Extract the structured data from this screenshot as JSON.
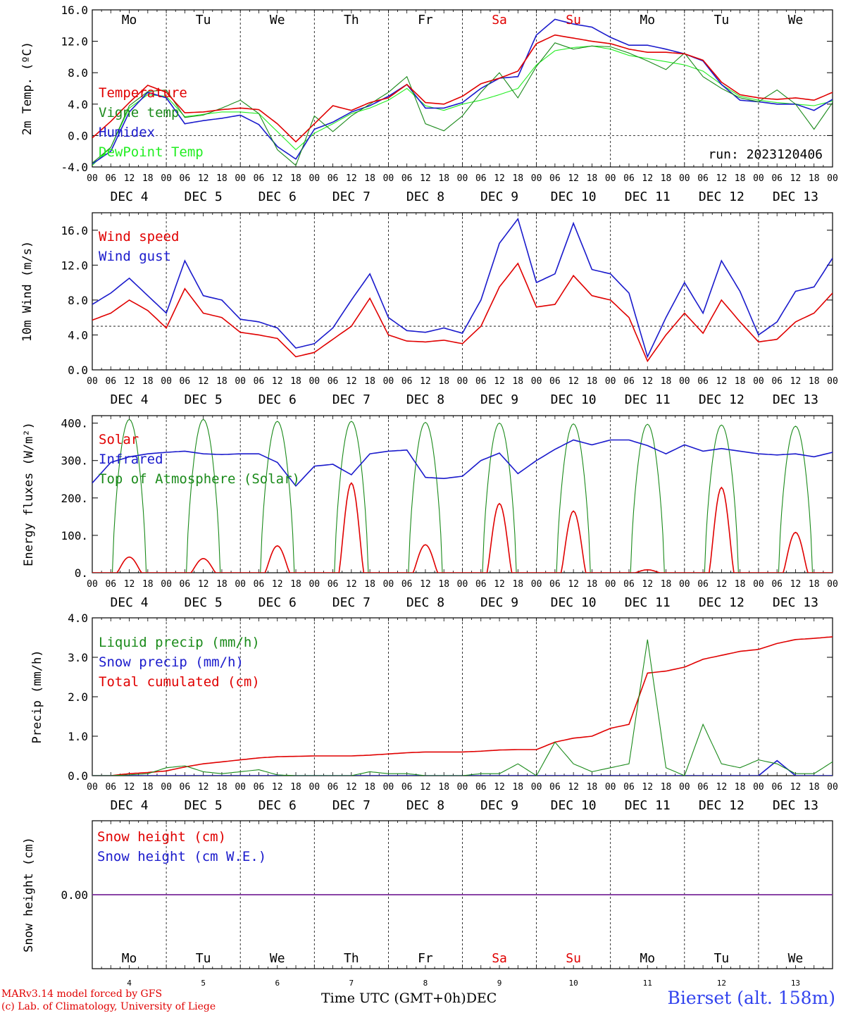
{
  "colors": {
    "red": "#e00000",
    "green": "#1a8a1a",
    "blue": "#1a1acc",
    "lightgreen": "#22ee22",
    "purple": "#7a2a9a"
  },
  "weekdays": [
    {
      "label": "Mo",
      "weekend": false
    },
    {
      "label": "Tu",
      "weekend": false
    },
    {
      "label": "We",
      "weekend": false
    },
    {
      "label": "Th",
      "weekend": false
    },
    {
      "label": "Fr",
      "weekend": false
    },
    {
      "label": "Sa",
      "weekend": true
    },
    {
      "label": "Su",
      "weekend": true
    },
    {
      "label": "Mo",
      "weekend": false
    },
    {
      "label": "Tu",
      "weekend": false
    },
    {
      "label": "We",
      "weekend": false
    }
  ],
  "hour_ticks": [
    "00",
    "06",
    "12",
    "18"
  ],
  "date_labels": [
    "DEC  4",
    "DEC  5",
    "DEC  6",
    "DEC  7",
    "DEC  8",
    "DEC  9",
    "DEC 10",
    "DEC 11",
    "DEC 12",
    "DEC 13"
  ],
  "bottom_day_numbers": [
    "4",
    "5",
    "6",
    "7",
    "8",
    "9",
    "10",
    "11",
    "12",
    "13"
  ],
  "footer": {
    "credit_line1": "MARv3.14 model forced by GFS",
    "credit_line2": "(c) Lab. of Climatology, University of Liege",
    "axis_label": "Time UTC (GMT+0h)",
    "month": "DEC",
    "station": "Bierset (alt. 158m)"
  },
  "chart_data": [
    {
      "type": "line",
      "ylabel": "2m Temp. (ºC)",
      "ylim": [
        -4,
        16
      ],
      "yticks": [
        "-4.0",
        "0.0",
        "4.0",
        "8.0",
        "12.0",
        "16.0"
      ],
      "ytick_values": [
        -4,
        0,
        4,
        8,
        12,
        16
      ],
      "reference_line": 0,
      "annotation": "run: 2023120406",
      "x_unit": "hours since 4 Dec 00 UTC",
      "series": [
        {
          "name": "Temperature",
          "color": "red",
          "x": [
            0,
            6,
            12,
            18,
            24,
            30,
            36,
            42,
            48,
            54,
            60,
            66,
            72,
            78,
            84,
            90,
            96,
            102,
            108,
            114,
            120,
            126,
            132,
            138,
            144,
            150,
            156,
            162,
            168,
            174,
            180,
            186,
            192,
            198,
            204,
            210,
            216,
            222,
            228,
            234,
            240
          ],
          "y": [
            -0.3,
            1.8,
            4.2,
            6.4,
            5.5,
            2.9,
            3.0,
            3.3,
            3.5,
            3.3,
            1.5,
            -0.8,
            1.5,
            3.8,
            3.2,
            4.2,
            4.8,
            6.5,
            4.2,
            4.0,
            5.0,
            6.6,
            7.3,
            8.2,
            11.7,
            12.8,
            12.4,
            12.0,
            11.7,
            11.0,
            10.6,
            10.6,
            10.4,
            9.6,
            6.8,
            5.2,
            4.8,
            4.6,
            4.8,
            4.5,
            5.5
          ]
        },
        {
          "name": "Vigne temp",
          "color": "green",
          "x": [
            0,
            6,
            12,
            18,
            24,
            30,
            36,
            42,
            48,
            54,
            60,
            66,
            72,
            78,
            84,
            90,
            96,
            102,
            108,
            114,
            120,
            126,
            132,
            138,
            144,
            150,
            156,
            162,
            168,
            174,
            180,
            186,
            192,
            198,
            204,
            210,
            216,
            222,
            228,
            234,
            240
          ],
          "y": [
            -3.5,
            -1.5,
            3.8,
            5.6,
            5.8,
            2.3,
            2.6,
            3.5,
            4.5,
            2.8,
            -1.8,
            -3.8,
            2.5,
            0.5,
            2.5,
            4.0,
            5.5,
            7.5,
            1.5,
            0.6,
            2.5,
            5.5,
            8.0,
            4.8,
            8.8,
            11.8,
            11.0,
            11.4,
            11.3,
            10.5,
            9.5,
            8.4,
            10.5,
            7.5,
            6.0,
            4.8,
            4.3,
            5.8,
            4.0,
            0.8,
            4.2
          ]
        },
        {
          "name": "Humidex",
          "color": "blue",
          "x": [
            0,
            6,
            12,
            18,
            24,
            30,
            36,
            42,
            48,
            54,
            60,
            66,
            72,
            78,
            84,
            90,
            96,
            102,
            108,
            114,
            120,
            126,
            132,
            138,
            144,
            150,
            156,
            162,
            168,
            174,
            180,
            186,
            192,
            198,
            204,
            210,
            216,
            222,
            228,
            234,
            240
          ],
          "y": [
            -3.6,
            -2.0,
            3.0,
            5.5,
            4.8,
            1.5,
            1.9,
            2.2,
            2.6,
            1.4,
            -1.4,
            -3.0,
            0.8,
            1.7,
            3.0,
            3.8,
            5.0,
            6.5,
            3.5,
            3.5,
            4.2,
            6.0,
            7.3,
            7.5,
            12.8,
            14.8,
            14.2,
            13.8,
            12.5,
            11.5,
            11.5,
            11.0,
            10.4,
            9.5,
            6.5,
            4.5,
            4.3,
            4.0,
            4.0,
            3.2,
            4.6
          ]
        },
        {
          "name": "DewPoint Temp",
          "color": "lightgreen",
          "x": [
            0,
            6,
            12,
            18,
            24,
            30,
            36,
            42,
            48,
            54,
            60,
            66,
            72,
            78,
            84,
            90,
            96,
            102,
            108,
            114,
            120,
            126,
            132,
            138,
            144,
            150,
            156,
            162,
            168,
            174,
            180,
            186,
            192,
            198,
            204,
            210,
            216,
            222,
            228,
            234,
            240
          ],
          "y": [
            -3.8,
            -1.5,
            3.5,
            5.2,
            5.0,
            2.4,
            2.7,
            3.0,
            3.0,
            2.8,
            0.5,
            -1.8,
            0.3,
            1.5,
            2.8,
            3.5,
            4.5,
            6.0,
            3.8,
            3.2,
            4.0,
            4.5,
            5.2,
            6.0,
            9.0,
            10.8,
            11.2,
            11.4,
            11.0,
            10.2,
            9.8,
            9.4,
            9.0,
            8.2,
            6.5,
            5.0,
            4.5,
            4.2,
            4.0,
            3.8,
            4.4
          ]
        }
      ]
    },
    {
      "type": "line",
      "ylabel": "10m Wind (m/s)",
      "ylim": [
        0,
        18
      ],
      "yticks": [
        "0.0",
        "4.0",
        "8.0",
        "12.0",
        "16.0"
      ],
      "ytick_values": [
        0,
        4,
        8,
        12,
        16
      ],
      "reference_line": 5,
      "x_unit": "hours since 4 Dec 00 UTC",
      "series": [
        {
          "name": "Wind speed",
          "color": "red",
          "x": [
            0,
            6,
            12,
            18,
            24,
            30,
            36,
            42,
            48,
            54,
            60,
            66,
            72,
            78,
            84,
            90,
            96,
            102,
            108,
            114,
            120,
            126,
            132,
            138,
            144,
            150,
            156,
            162,
            168,
            174,
            180,
            186,
            192,
            198,
            204,
            210,
            216,
            222,
            228,
            234,
            240
          ],
          "y": [
            5.7,
            6.5,
            8.0,
            6.8,
            4.8,
            9.3,
            6.5,
            6.0,
            4.3,
            4.0,
            3.6,
            1.5,
            2.0,
            3.5,
            5.0,
            8.2,
            4.0,
            3.3,
            3.2,
            3.4,
            3.0,
            5.0,
            9.5,
            12.2,
            7.2,
            7.5,
            10.8,
            8.5,
            8.0,
            6.0,
            1.0,
            4.0,
            6.5,
            4.2,
            8.0,
            5.5,
            3.2,
            3.5,
            5.5,
            6.5,
            8.8
          ]
        },
        {
          "name": "Wind gust",
          "color": "blue",
          "x": [
            0,
            6,
            12,
            18,
            24,
            30,
            36,
            42,
            48,
            54,
            60,
            66,
            72,
            78,
            84,
            90,
            96,
            102,
            108,
            114,
            120,
            126,
            132,
            138,
            144,
            150,
            156,
            162,
            168,
            174,
            180,
            186,
            192,
            198,
            204,
            210,
            216,
            222,
            228,
            234,
            240
          ],
          "y": [
            7.5,
            8.8,
            10.5,
            8.5,
            6.5,
            12.5,
            8.5,
            8.0,
            5.8,
            5.5,
            4.8,
            2.5,
            3.0,
            4.8,
            8.0,
            11.0,
            6.0,
            4.5,
            4.3,
            4.8,
            4.2,
            8.0,
            14.5,
            17.3,
            10.0,
            11.0,
            16.8,
            11.5,
            11.0,
            8.8,
            1.5,
            6.0,
            10.0,
            6.5,
            12.5,
            9.0,
            4.0,
            5.5,
            9.0,
            9.5,
            12.8
          ]
        }
      ]
    },
    {
      "type": "line",
      "ylabel": "Energy fluxes (W/m²)",
      "ylim": [
        0,
        420
      ],
      "yticks": [
        "0.",
        "100.",
        "200.",
        "300.",
        "400."
      ],
      "ytick_values": [
        0,
        100,
        200,
        300,
        400
      ],
      "x_unit": "hours since 4 Dec 00 UTC",
      "series": [
        {
          "name": "Solar",
          "color": "red",
          "daily_peak": [
            42,
            38,
            72,
            240,
            75,
            185,
            165,
            8,
            228,
            108
          ]
        },
        {
          "name": "Infrared",
          "color": "blue",
          "x": [
            0,
            6,
            12,
            18,
            24,
            30,
            36,
            42,
            48,
            54,
            60,
            66,
            72,
            78,
            84,
            90,
            96,
            102,
            108,
            114,
            120,
            126,
            132,
            138,
            144,
            150,
            156,
            162,
            168,
            174,
            180,
            186,
            192,
            198,
            204,
            210,
            216,
            222,
            228,
            234,
            240
          ],
          "y": [
            240,
            295,
            310,
            318,
            322,
            325,
            318,
            316,
            318,
            318,
            295,
            232,
            285,
            290,
            262,
            318,
            325,
            328,
            255,
            252,
            258,
            300,
            320,
            265,
            300,
            330,
            355,
            342,
            355,
            355,
            340,
            318,
            342,
            325,
            332,
            325,
            318,
            315,
            318,
            310,
            322
          ]
        },
        {
          "name": "Top of Atmosphere (Solar)",
          "color": "green",
          "daily_peak": [
            410,
            410,
            405,
            405,
            402,
            400,
            398,
            397,
            395,
            392
          ]
        }
      ]
    },
    {
      "type": "line",
      "ylabel": "Precip (mm/h)",
      "ylim": [
        0,
        4
      ],
      "yticks": [
        "0.0",
        "1.0",
        "2.0",
        "3.0",
        "4.0"
      ],
      "ytick_values": [
        0,
        1,
        2,
        3,
        4
      ],
      "x_unit": "hours since 4 Dec 00 UTC",
      "series": [
        {
          "name": "Liquid precip (mm/h)",
          "color": "green",
          "x": [
            0,
            6,
            12,
            18,
            24,
            30,
            36,
            42,
            48,
            54,
            60,
            66,
            72,
            78,
            84,
            90,
            96,
            102,
            108,
            114,
            120,
            126,
            132,
            138,
            144,
            150,
            156,
            162,
            168,
            174,
            180,
            186,
            192,
            198,
            204,
            210,
            216,
            222,
            228,
            234,
            240
          ],
          "y": [
            0,
            0,
            0.02,
            0.05,
            0.2,
            0.25,
            0.1,
            0.05,
            0.1,
            0.15,
            0.02,
            0,
            0,
            0,
            0,
            0.1,
            0.05,
            0.05,
            0,
            0,
            0,
            0.05,
            0.05,
            0.3,
            0,
            0.85,
            0.3,
            0.1,
            0.2,
            0.3,
            3.45,
            0.2,
            0,
            1.3,
            0.3,
            0.2,
            0.4,
            0.3,
            0.05,
            0.05,
            0.35
          ]
        },
        {
          "name": "Snow precip (mm/h)",
          "color": "blue",
          "x": [
            0,
            216,
            222,
            228,
            240
          ],
          "y": [
            0,
            0,
            0.38,
            0,
            0
          ]
        },
        {
          "name": "Total cumulated (cm)",
          "color": "red",
          "x": [
            0,
            6,
            12,
            18,
            24,
            30,
            36,
            42,
            48,
            54,
            60,
            66,
            72,
            78,
            84,
            90,
            96,
            102,
            108,
            114,
            120,
            126,
            132,
            138,
            144,
            150,
            156,
            162,
            168,
            174,
            180,
            186,
            192,
            198,
            204,
            210,
            216,
            222,
            228,
            234,
            240
          ],
          "y": [
            0,
            0,
            0.05,
            0.08,
            0.12,
            0.22,
            0.3,
            0.35,
            0.4,
            0.45,
            0.48,
            0.49,
            0.5,
            0.5,
            0.5,
            0.52,
            0.55,
            0.58,
            0.6,
            0.6,
            0.6,
            0.62,
            0.65,
            0.66,
            0.66,
            0.85,
            0.95,
            1.0,
            1.2,
            1.3,
            2.6,
            2.65,
            2.75,
            2.95,
            3.05,
            3.15,
            3.2,
            3.35,
            3.45,
            3.48,
            3.52
          ]
        }
      ]
    },
    {
      "type": "line",
      "ylabel": "Snow height (cm)",
      "ylim": [
        -1,
        1
      ],
      "yticks": [
        "0.00"
      ],
      "ytick_values": [
        0
      ],
      "x_unit": "hours since 4 Dec 00 UTC",
      "series": [
        {
          "name": "Snow height (cm)",
          "color": "red",
          "x": [
            0,
            240
          ],
          "y": [
            0,
            0
          ]
        },
        {
          "name": "Snow height (cm W.E.)",
          "color": "blue",
          "x": [
            0,
            240
          ],
          "y": [
            0,
            0
          ]
        }
      ]
    }
  ]
}
